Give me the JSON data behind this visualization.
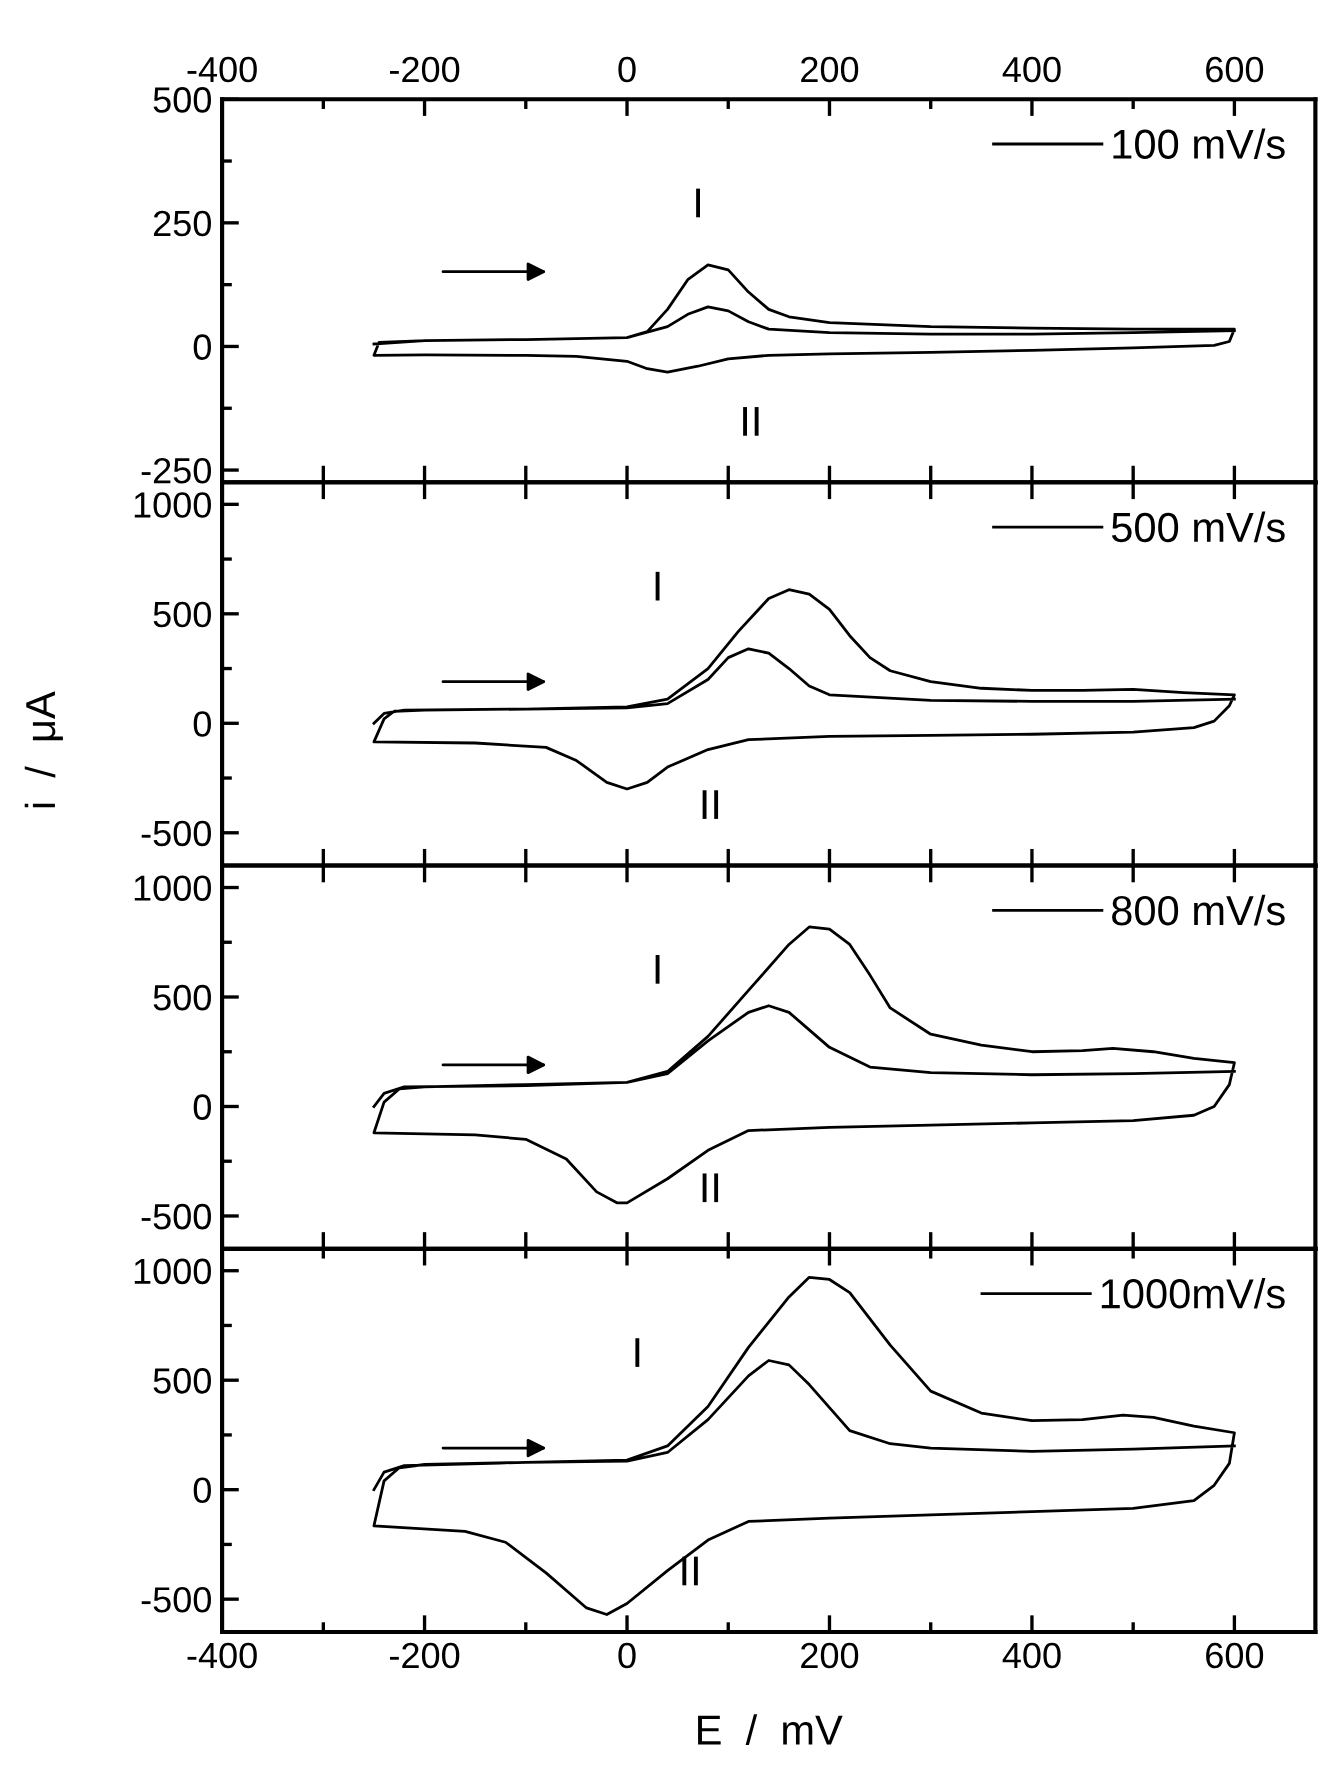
{
  "chart_data": [
    {
      "type": "line",
      "xlim": [
        -400,
        680
      ],
      "ylim": [
        -275,
        500
      ],
      "tick_labels": "y",
      "legend": "top right",
      "x2lim": [
        -400,
        680
      ],
      "x2ticks": [
        -400,
        {
          "value": -300,
          "label": null
        },
        -200,
        {
          "value": -100,
          "label": null
        },
        0,
        {
          "value": 100,
          "label": null
        },
        200,
        {
          "value": 300,
          "label": null
        },
        400,
        {
          "value": 500,
          "label": null
        },
        600
      ],
      "xticks": [
        -400,
        {
          "value": -300,
          "label": null
        },
        -200,
        {
          "value": -100,
          "label": null
        },
        0,
        {
          "value": 100,
          "label": null
        },
        200,
        {
          "value": 300,
          "label": null
        },
        400,
        {
          "value": 500,
          "label": null
        },
        600
      ],
      "yticks": [
        -250,
        {
          "value": -125,
          "label": null
        },
        0,
        {
          "value": 125,
          "label": null
        },
        250,
        {
          "value": 375,
          "label": null
        },
        500
      ],
      "annotations": [
        "I",
        "II"
      ],
      "series": [
        {
          "name": "100 mV/s",
          "color": "#000000",
          "x": [
            -250,
            -200,
            -100,
            0,
            20,
            40,
            60,
            80,
            100,
            120,
            140,
            160,
            200,
            300,
            400,
            500,
            600,
            595,
            580,
            500,
            400,
            300,
            200,
            140,
            100,
            70,
            40,
            20,
            0,
            -50,
            -100,
            -200,
            -250,
            -245,
            -200,
            -100,
            0,
            40,
            60,
            80,
            100,
            120,
            140,
            200,
            300,
            400,
            500,
            600
          ],
          "values": [
            5,
            12,
            14,
            18,
            30,
            75,
            135,
            165,
            155,
            110,
            75,
            60,
            48,
            40,
            37,
            35,
            35,
            10,
            2,
            -3,
            -8,
            -12,
            -15,
            -18,
            -25,
            -40,
            -52,
            -45,
            -30,
            -20,
            -18,
            -17,
            -18,
            8,
            12,
            14,
            18,
            40,
            65,
            80,
            72,
            50,
            35,
            28,
            25,
            25,
            28,
            32
          ]
        }
      ]
    },
    {
      "type": "line",
      "ylabel": "i  /  μA",
      "xlim": [
        -400,
        680
      ],
      "ylim": [
        -650,
        1100
      ],
      "tick_labels": "y",
      "legend": "top right",
      "xticks": [
        -400,
        {
          "value": -300,
          "label": null
        },
        -200,
        {
          "value": -100,
          "label": null
        },
        0,
        {
          "value": 100,
          "label": null
        },
        200,
        {
          "value": 300,
          "label": null
        },
        400,
        {
          "value": 500,
          "label": null
        },
        600
      ],
      "yticks": [
        -500,
        {
          "value": -250,
          "label": null
        },
        0,
        {
          "value": 250,
          "label": null
        },
        500,
        {
          "value": 750,
          "label": null
        },
        1000
      ],
      "annotations": [
        "I",
        "II"
      ],
      "series": [
        {
          "name": "500 mV/s",
          "color": "#000000",
          "x": [
            -250,
            -240,
            -220,
            -100,
            0,
            40,
            80,
            110,
            140,
            160,
            180,
            200,
            220,
            240,
            260,
            300,
            350,
            400,
            450,
            500,
            550,
            600,
            595,
            580,
            560,
            500,
            400,
            300,
            200,
            120,
            80,
            40,
            20,
            0,
            -20,
            -50,
            -80,
            -150,
            -250,
            -240,
            -230,
            -200,
            -100,
            0,
            40,
            80,
            100,
            120,
            140,
            160,
            180,
            200,
            300,
            400,
            500,
            600
          ],
          "values": [
            0,
            45,
            60,
            65,
            75,
            110,
            250,
            420,
            570,
            610,
            590,
            520,
            400,
            300,
            240,
            190,
            160,
            150,
            150,
            155,
            140,
            130,
            80,
            10,
            -20,
            -40,
            -50,
            -55,
            -60,
            -75,
            -120,
            -200,
            -270,
            -300,
            -270,
            -170,
            -110,
            -90,
            -85,
            20,
            55,
            60,
            65,
            70,
            90,
            200,
            300,
            340,
            320,
            250,
            170,
            130,
            105,
            100,
            100,
            110
          ]
        }
      ]
    },
    {
      "type": "line",
      "xlim": [
        -400,
        680
      ],
      "ylim": [
        -650,
        1100
      ],
      "tick_labels": "y",
      "legend": "top right",
      "xticks": [
        -400,
        {
          "value": -300,
          "label": null
        },
        -200,
        {
          "value": -100,
          "label": null
        },
        0,
        {
          "value": 100,
          "label": null
        },
        200,
        {
          "value": 300,
          "label": null
        },
        400,
        {
          "value": 500,
          "label": null
        },
        600
      ],
      "yticks": [
        -500,
        {
          "value": -250,
          "label": null
        },
        0,
        {
          "value": 250,
          "label": null
        },
        500,
        {
          "value": 750,
          "label": null
        },
        1000
      ],
      "annotations": [
        "I",
        "II"
      ],
      "series": [
        {
          "name": "800 mV/s",
          "color": "#000000",
          "x": [
            -250,
            -240,
            -220,
            -100,
            0,
            40,
            80,
            120,
            160,
            180,
            200,
            220,
            240,
            260,
            300,
            350,
            400,
            450,
            480,
            520,
            560,
            600,
            595,
            580,
            560,
            500,
            400,
            300,
            200,
            120,
            80,
            40,
            0,
            -10,
            -30,
            -60,
            -100,
            -150,
            -250,
            -240,
            -225,
            -200,
            -100,
            0,
            40,
            80,
            120,
            140,
            160,
            180,
            200,
            240,
            300,
            400,
            500,
            600
          ],
          "values": [
            0,
            60,
            90,
            95,
            110,
            160,
            320,
            530,
            740,
            820,
            810,
            740,
            600,
            450,
            330,
            280,
            250,
            255,
            265,
            250,
            220,
            200,
            100,
            0,
            -40,
            -65,
            -75,
            -85,
            -95,
            -110,
            -200,
            -330,
            -440,
            -440,
            -390,
            -240,
            -150,
            -130,
            -120,
            20,
            80,
            90,
            100,
            110,
            150,
            300,
            430,
            460,
            430,
            350,
            270,
            180,
            155,
            145,
            150,
            160
          ]
        }
      ]
    },
    {
      "type": "line",
      "xlabel": "E  /  mV",
      "xlim": [
        -400,
        680
      ],
      "ylim": [
        -650,
        1100
      ],
      "legend": "top right",
      "xticks": [
        -400,
        {
          "value": -300,
          "label": null
        },
        -200,
        {
          "value": -100,
          "label": null
        },
        0,
        {
          "value": 100,
          "label": null
        },
        200,
        {
          "value": 300,
          "label": null
        },
        400,
        {
          "value": 500,
          "label": null
        },
        600
      ],
      "yticks": [
        -500,
        {
          "value": -250,
          "label": null
        },
        0,
        {
          "value": 250,
          "label": null
        },
        500,
        {
          "value": 750,
          "label": null
        },
        1000
      ],
      "annotations": [
        "I",
        "II"
      ],
      "series": [
        {
          "name": "1000mV/s",
          "color": "#000000",
          "x": [
            -250,
            -240,
            -220,
            -100,
            0,
            40,
            80,
            120,
            160,
            180,
            200,
            220,
            260,
            300,
            350,
            400,
            450,
            490,
            520,
            560,
            600,
            595,
            580,
            560,
            500,
            400,
            300,
            200,
            120,
            80,
            40,
            0,
            -20,
            -40,
            -80,
            -120,
            -160,
            -250,
            -240,
            -225,
            -200,
            -100,
            0,
            40,
            80,
            120,
            140,
            160,
            180,
            220,
            260,
            300,
            400,
            500,
            600
          ],
          "values": [
            0,
            80,
            110,
            125,
            135,
            200,
            380,
            650,
            880,
            970,
            960,
            900,
            660,
            450,
            350,
            315,
            320,
            340,
            330,
            290,
            260,
            120,
            20,
            -50,
            -85,
            -100,
            -115,
            -130,
            -145,
            -230,
            -370,
            -520,
            -570,
            -540,
            -380,
            -240,
            -190,
            -165,
            40,
            100,
            115,
            125,
            130,
            170,
            320,
            520,
            590,
            570,
            480,
            270,
            210,
            190,
            175,
            185,
            200
          ]
        }
      ]
    }
  ]
}
